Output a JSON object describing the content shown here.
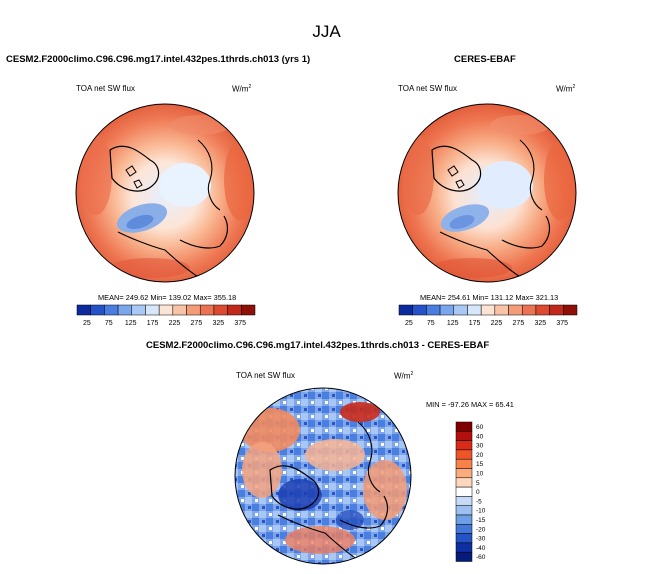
{
  "figure": {
    "season": "JJA"
  },
  "panels": [
    {
      "title": "CESM2.F2000climo.C96.C96.mg17.intel.432pes.1thrds.ch013 (yrs 1)",
      "variable": "TOA net SW flux",
      "units": "W/m",
      "units_exp": "2",
      "stats": "MEAN= 249.62   Min= 139.02   Max= 355.18",
      "colorbar_ticks": [
        "25",
        "75",
        "125",
        "175",
        "225",
        "275",
        "325",
        "375"
      ]
    },
    {
      "title": "CERES-EBAF",
      "variable": "TOA net SW flux",
      "units": "W/m",
      "units_exp": "2",
      "stats": "MEAN= 254.61   Min= 131.12   Max= 321.13",
      "colorbar_ticks": [
        "25",
        "75",
        "125",
        "175",
        "225",
        "275",
        "325",
        "375"
      ]
    }
  ],
  "diff": {
    "title": "CESM2.F2000climo.C96.C96.mg17.intel.432pes.1thrds.ch013 - CERES-EBAF",
    "variable": "TOA net SW flux",
    "units": "W/m",
    "units_exp": "2",
    "stats": "MIN = -97.26 MAX = 65.41",
    "colorbar_labels": [
      "60",
      "40",
      "30",
      "20",
      "15",
      "10",
      "5",
      "0",
      "-5",
      "-10",
      "-15",
      "-20",
      "-30",
      "-40",
      "-60"
    ]
  },
  "colors": {
    "abs_scale": [
      "#0b2a9e",
      "#2452c9",
      "#4a7de0",
      "#7aa6ee",
      "#a9c8f6",
      "#d6e6fb",
      "#fde3d4",
      "#f9c3a6",
      "#f39c77",
      "#ec7352",
      "#de4a2f",
      "#c2281a",
      "#8e1008"
    ],
    "diff_scale": [
      "#800000",
      "#b20f0f",
      "#d92b17",
      "#ee5528",
      "#f7834a",
      "#fbac7d",
      "#fdd6bd",
      "#ffffff",
      "#c6dbf7",
      "#9cc0f0",
      "#6e9ee6",
      "#4478d8",
      "#2552c4",
      "#0e2fa3",
      "#051a7a"
    ]
  }
}
